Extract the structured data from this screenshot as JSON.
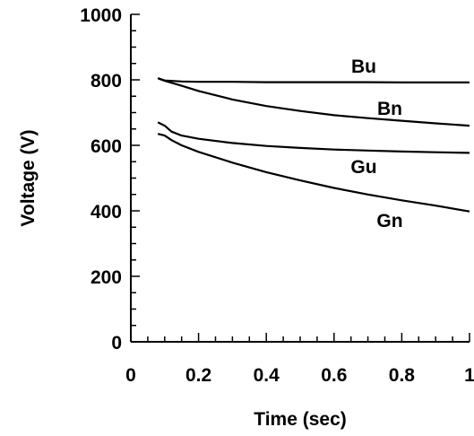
{
  "chart_data": {
    "type": "line",
    "xlabel": "Time (sec)",
    "ylabel": "Voltage (V)",
    "xlim": [
      0,
      1
    ],
    "ylim": [
      0,
      1000
    ],
    "x_ticks": [
      "0",
      "0.2",
      "0.4",
      "0.6",
      "0.8",
      "1"
    ],
    "y_ticks": [
      "0",
      "200",
      "400",
      "600",
      "800",
      "1000"
    ],
    "grid": false,
    "legend": "inline labels",
    "series": [
      {
        "name": "Bu",
        "x": [
          0.08,
          0.1,
          0.15,
          0.2,
          0.3,
          0.4,
          0.5,
          0.6,
          0.7,
          0.8,
          0.9,
          1.0
        ],
        "values": [
          805,
          798,
          795,
          794,
          794,
          793,
          793,
          793,
          793,
          792,
          792,
          792
        ]
      },
      {
        "name": "Bn",
        "x": [
          0.08,
          0.1,
          0.15,
          0.2,
          0.3,
          0.4,
          0.5,
          0.6,
          0.7,
          0.8,
          0.9,
          1.0
        ],
        "values": [
          805,
          797,
          782,
          766,
          740,
          720,
          705,
          692,
          683,
          675,
          667,
          660
        ]
      },
      {
        "name": "Gu",
        "x": [
          0.08,
          0.1,
          0.12,
          0.15,
          0.2,
          0.3,
          0.4,
          0.5,
          0.6,
          0.7,
          0.8,
          0.9,
          1.0
        ],
        "values": [
          670,
          660,
          642,
          630,
          620,
          607,
          598,
          592,
          587,
          584,
          581,
          579,
          577
        ]
      },
      {
        "name": "Gn",
        "x": [
          0.08,
          0.1,
          0.12,
          0.15,
          0.2,
          0.3,
          0.4,
          0.5,
          0.6,
          0.7,
          0.8,
          0.9,
          1.0
        ],
        "values": [
          635,
          630,
          616,
          600,
          580,
          547,
          518,
          493,
          470,
          450,
          432,
          416,
          398
        ]
      }
    ],
    "annotations": [
      "Bu",
      "Bn",
      "Gu",
      "Gn"
    ]
  }
}
